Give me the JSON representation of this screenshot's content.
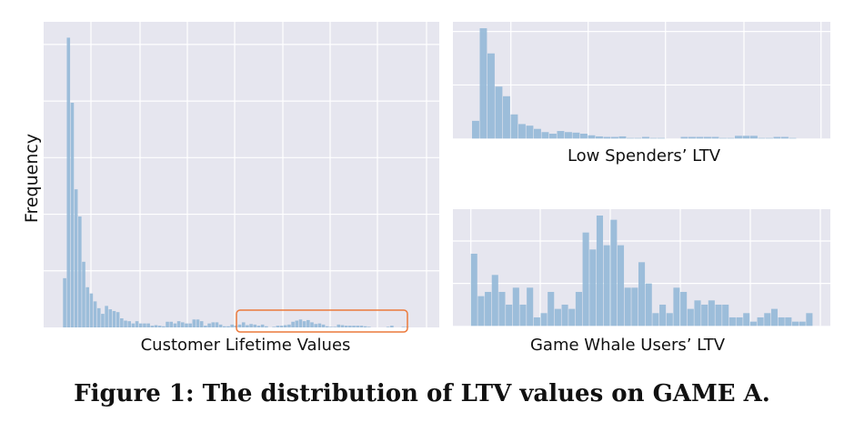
{
  "colors": {
    "panel": "#e6e6ef",
    "bar": "#93b8d7",
    "grid": "#ffffff",
    "highlight": "#ec7a3c"
  },
  "caption": "Figure 1: The distribution of LTV values on GAME A.",
  "chart_data": [
    {
      "type": "bar",
      "title": "",
      "xlabel": "Customer Lifetime Values",
      "ylabel": "Frequency",
      "yticks": [
        0,
        10,
        20,
        30,
        40,
        50
      ],
      "ylim": [
        0,
        54
      ],
      "grid": true,
      "values": [
        8.7,
        51.2,
        39.7,
        24.4,
        19.6,
        11.6,
        7.1,
        6,
        4.6,
        3.4,
        2.4,
        3.8,
        3.2,
        2.9,
        2.7,
        1.6,
        1.2,
        1.1,
        0.7,
        1.1,
        0.7,
        0.7,
        0.7,
        0.3,
        0.4,
        0.3,
        0.2,
        1,
        1,
        0.7,
        1.1,
        0.9,
        0.7,
        0.7,
        1.4,
        1.4,
        1.1,
        0.3,
        0.7,
        0.9,
        0.9,
        0.5,
        0.2,
        0.2,
        0.5,
        0.3,
        0.5,
        0.9,
        0.4,
        0.6,
        0.5,
        0.3,
        0.5,
        0.2,
        0,
        0.1,
        0.3,
        0.3,
        0.4,
        0.5,
        1.0,
        1.2,
        1.4,
        1.1,
        1.3,
        0.9,
        0.6,
        0.7,
        0.5,
        0.2,
        0.1,
        0.1,
        0.5,
        0.4,
        0.3,
        0.3,
        0.3,
        0.3,
        0.3,
        0.2,
        0.1,
        0,
        0,
        0,
        0,
        0.1,
        0.3,
        0,
        0,
        0.1,
        0.1
      ],
      "annotation": "highlighted tail region (game whale users)"
    },
    {
      "type": "bar",
      "title": "",
      "xlabel": "Low Spenders’ LTV",
      "ylabel": "",
      "yticks": [
        0,
        10,
        20
      ],
      "ylim": [
        0,
        21.8
      ],
      "grid": true,
      "values": [
        3.3,
        20.6,
        15.9,
        9.7,
        7.9,
        4.5,
        2.7,
        2.4,
        1.8,
        1.2,
        0.9,
        1.4,
        1.2,
        1.1,
        0.9,
        0.6,
        0.4,
        0.3,
        0.3,
        0.4,
        0.1,
        0.1,
        0.3,
        0.1,
        0.1,
        0,
        0,
        0.3,
        0.3,
        0.3,
        0.3,
        0.3,
        0.1,
        0.1,
        0.5,
        0.5,
        0.5,
        0.1,
        0.1,
        0.3,
        0.3,
        0.1,
        0,
        0
      ]
    },
    {
      "type": "bar",
      "title": "",
      "xlabel": "Game Whale Users’ LTV",
      "ylabel": "",
      "yticks": [
        0,
        10,
        20
      ],
      "ylim": [
        0,
        27.5
      ],
      "grid": true,
      "values": [
        17,
        7,
        8,
        12,
        8,
        5,
        9,
        5,
        9,
        2,
        3,
        8,
        4,
        5,
        4,
        8,
        22,
        18,
        26,
        19,
        25,
        19,
        9,
        9,
        15,
        10,
        3,
        5,
        3,
        9,
        8,
        4,
        6,
        5,
        6,
        5,
        5,
        2,
        2,
        3,
        1,
        2,
        3,
        4,
        2,
        2,
        1,
        1,
        3
      ]
    }
  ]
}
